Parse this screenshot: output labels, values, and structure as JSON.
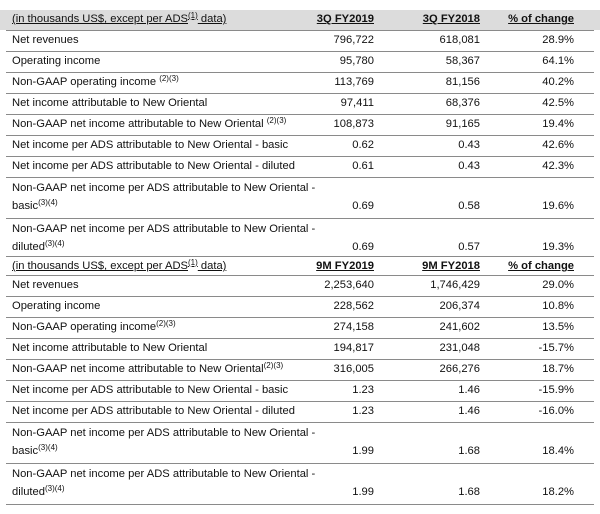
{
  "section1": {
    "header": {
      "unit_text": "(in thousands US$, except per ADS",
      "unit_sup": "(1)",
      "unit_tail": " data)",
      "col1": "3Q FY2019",
      "col2": "3Q FY2018",
      "col3": "% of change"
    },
    "rows": [
      {
        "label": "Net revenues",
        "sup": "",
        "v1": "796,722",
        "v2": "618,081",
        "v3": "28.9%"
      },
      {
        "label": "Operating income",
        "sup": "",
        "v1": "95,780",
        "v2": "58,367",
        "v3": "64.1%"
      },
      {
        "label": "Non-GAAP operating income ",
        "sup": "(2)(3)",
        "v1": "113,769",
        "v2": "81,156",
        "v3": "40.2%"
      },
      {
        "label": "Net income attributable to New Oriental",
        "sup": "",
        "v1": "97,411",
        "v2": "68,376",
        "v3": "42.5%"
      },
      {
        "label": "Non-GAAP net income attributable to New Oriental ",
        "sup": "(2)(3)",
        "v1": "108,873",
        "v2": "91,165",
        "v3": "19.4%"
      },
      {
        "label": "Net income per ADS attributable to New Oriental - basic",
        "sup": "",
        "v1": "0.62",
        "v2": "0.43",
        "v3": "42.6%"
      },
      {
        "label": "Net income per ADS attributable to New Oriental - diluted",
        "sup": "",
        "v1": "0.61",
        "v2": "0.43",
        "v3": "42.3%"
      },
      {
        "label": "Non-GAAP net income per ADS attributable to New Oriental - basic",
        "sup": "(3)(4)",
        "v1": "0.69",
        "v2": "0.58",
        "v3": "19.6%"
      },
      {
        "label": "Non-GAAP net income per ADS attributable to New Oriental - diluted",
        "sup": "(3)(4)",
        "v1": "0.69",
        "v2": "0.57",
        "v3": "19.3%"
      }
    ]
  },
  "section2": {
    "header": {
      "unit_text": "(in thousands US$, except per ADS",
      "unit_sup": "(1)",
      "unit_tail": " data)",
      "col1": "9M FY2019",
      "col2": "9M FY2018",
      "col3": "% of change"
    },
    "rows": [
      {
        "label": "Net revenues",
        "sup": "",
        "v1": "2,253,640",
        "v2": "1,746,429",
        "v3": "29.0%"
      },
      {
        "label": "Operating income",
        "sup": "",
        "v1": "228,562",
        "v2": "206,374",
        "v3": "10.8%"
      },
      {
        "label": "Non-GAAP operating income",
        "sup": "(2)(3)",
        "v1": "274,158",
        "v2": "241,602",
        "v3": "13.5%"
      },
      {
        "label": "Net income attributable to New Oriental",
        "sup": "",
        "v1": "194,817",
        "v2": "231,048",
        "v3": "-15.7%"
      },
      {
        "label": "Non-GAAP net income attributable to New Oriental",
        "sup": "(2)(3)",
        "v1": "316,005",
        "v2": "266,276",
        "v3": "18.7%"
      },
      {
        "label": "Net income per ADS attributable to New Oriental - basic",
        "sup": "",
        "v1": "1.23",
        "v2": "1.46",
        "v3": "-15.9%"
      },
      {
        "label": "Net income per ADS attributable to New Oriental - diluted",
        "sup": "",
        "v1": "1.23",
        "v2": "1.46",
        "v3": "-16.0%"
      },
      {
        "label": "Non-GAAP net income per ADS attributable to New Oriental - basic",
        "sup": "(3)(4)",
        "v1": "1.99",
        "v2": "1.68",
        "v3": "18.4%"
      },
      {
        "label": "Non-GAAP net income per ADS attributable to New Oriental - diluted",
        "sup": "(3)(4)",
        "v1": "1.99",
        "v2": "1.68",
        "v3": "18.2%"
      }
    ]
  }
}
